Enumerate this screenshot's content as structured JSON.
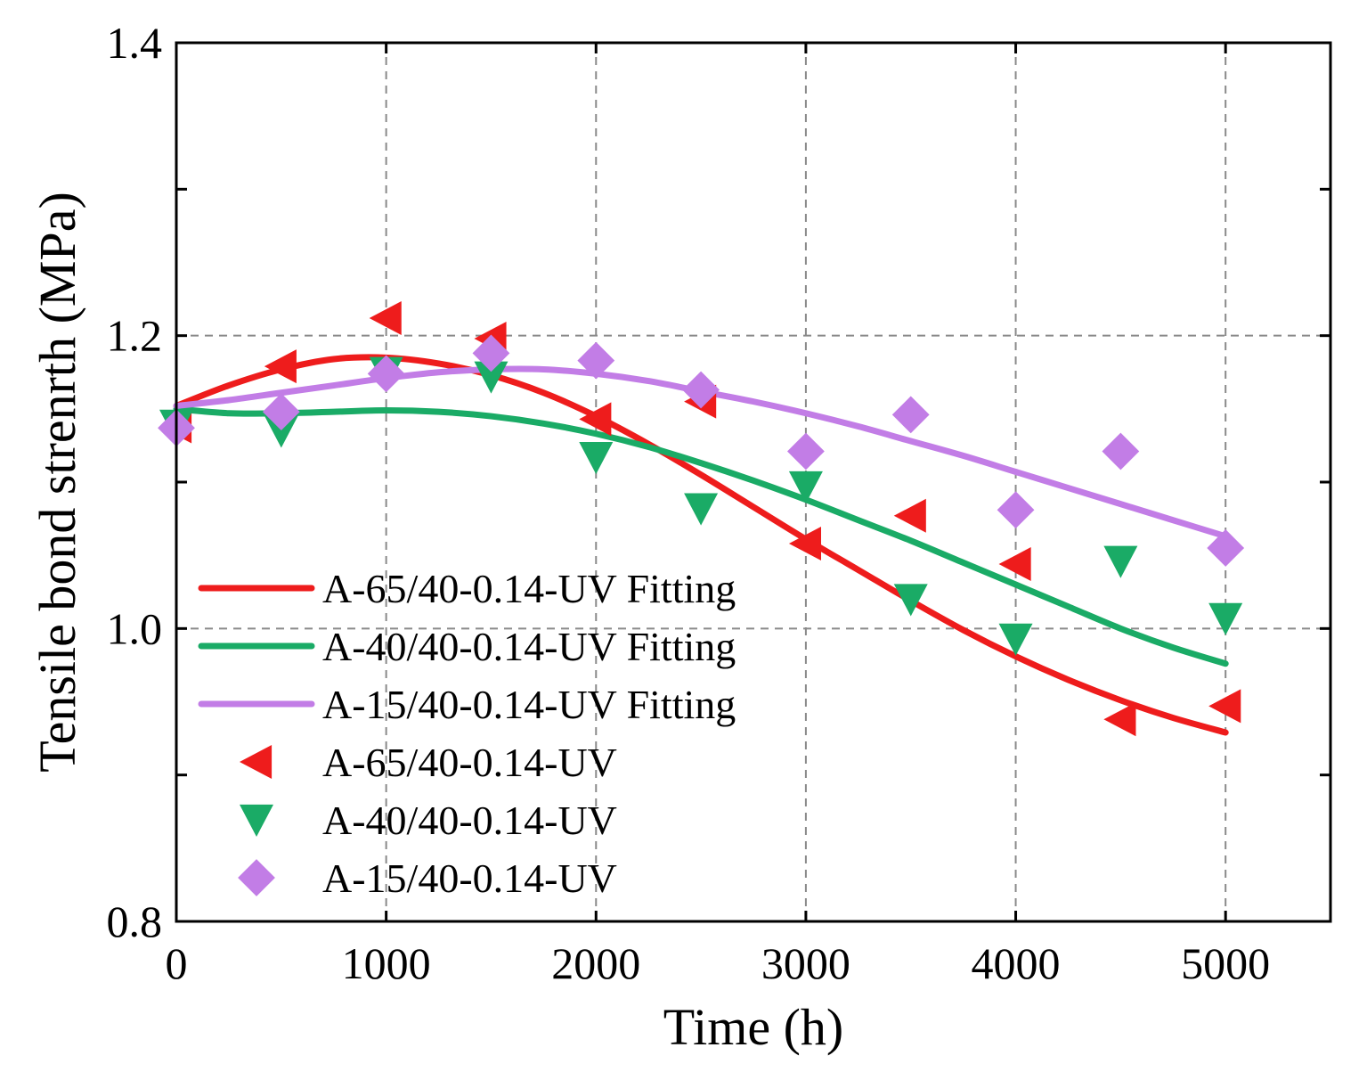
{
  "chart_data": {
    "type": "scatter",
    "title": "",
    "xlabel": "Time (h)",
    "ylabel": "Tensile bond strenrth (MPa)",
    "xlim": [
      0,
      5500
    ],
    "ylim": [
      0.8,
      1.4
    ],
    "x_ticks": [
      0,
      1000,
      2000,
      3000,
      4000,
      5000
    ],
    "x_tick_labels": [
      "0",
      "1000",
      "2000",
      "3000",
      "4000",
      "5000"
    ],
    "y_ticks": [
      0.8,
      1.0,
      1.2,
      1.4
    ],
    "y_tick_labels": [
      "0.8",
      "1.0",
      "1.2",
      "1.4"
    ],
    "y_minor_ticks": [
      0.9,
      1.1,
      1.3
    ],
    "grid": true,
    "legend_position": "bottom-left",
    "series": [
      {
        "name": "A-65/40-0.14-UV Fitting",
        "kind": "line",
        "color": "#ee1c1c",
        "x": [
          0,
          250,
          500,
          750,
          1000,
          1250,
          1500,
          1750,
          2000,
          2250,
          2500,
          2750,
          3000,
          3250,
          3500,
          3750,
          4000,
          4250,
          4500,
          4750,
          5000
        ],
        "y": [
          1.152,
          1.166,
          1.177,
          1.184,
          1.185,
          1.181,
          1.173,
          1.161,
          1.145,
          1.126,
          1.105,
          1.083,
          1.061,
          1.04,
          1.019,
          0.999,
          0.981,
          0.965,
          0.951,
          0.939,
          0.929
        ]
      },
      {
        "name": "A-40/40-0.14-UV Fitting",
        "kind": "line",
        "color": "#1aab66",
        "x": [
          0,
          250,
          500,
          750,
          1000,
          1250,
          1500,
          1750,
          2000,
          2250,
          2500,
          2750,
          3000,
          3250,
          3500,
          3750,
          4000,
          4250,
          4500,
          4750,
          5000
        ],
        "y": [
          1.15,
          1.147,
          1.147,
          1.148,
          1.149,
          1.148,
          1.145,
          1.14,
          1.133,
          1.124,
          1.113,
          1.101,
          1.088,
          1.074,
          1.06,
          1.045,
          1.03,
          1.015,
          1.0,
          0.987,
          0.976
        ]
      },
      {
        "name": "A-15/40-0.14-UV Fitting",
        "kind": "line",
        "color": "#c27de6",
        "x": [
          0,
          250,
          500,
          750,
          1000,
          1250,
          1500,
          1750,
          2000,
          2250,
          2500,
          2750,
          3000,
          3250,
          3500,
          3750,
          4000,
          4250,
          4500,
          4750,
          5000
        ],
        "y": [
          1.152,
          1.156,
          1.161,
          1.166,
          1.171,
          1.175,
          1.177,
          1.177,
          1.174,
          1.169,
          1.162,
          1.155,
          1.147,
          1.138,
          1.128,
          1.118,
          1.107,
          1.096,
          1.085,
          1.074,
          1.063
        ]
      },
      {
        "name": "A-65/40-0.14-UV",
        "kind": "marker",
        "marker": "triangle-left",
        "color": "#ee1c1c",
        "x": [
          0,
          500,
          1000,
          1500,
          2000,
          2500,
          3000,
          3500,
          4000,
          4500,
          5000
        ],
        "y": [
          1.138,
          1.179,
          1.212,
          1.198,
          1.143,
          1.155,
          1.058,
          1.077,
          1.044,
          0.938,
          0.947
        ]
      },
      {
        "name": "A-40/40-0.14-UV",
        "kind": "marker",
        "marker": "triangle-down",
        "color": "#1aab66",
        "x": [
          0,
          500,
          1000,
          1500,
          2000,
          2500,
          3000,
          3500,
          4000,
          4500,
          5000
        ],
        "y": [
          1.139,
          1.135,
          1.175,
          1.172,
          1.117,
          1.082,
          1.097,
          1.02,
          0.993,
          1.046,
          1.007
        ]
      },
      {
        "name": "A-15/40-0.14-UV",
        "kind": "marker",
        "marker": "diamond",
        "color": "#c27de6",
        "x": [
          0,
          500,
          1000,
          1500,
          2000,
          2500,
          3000,
          3500,
          4000,
          4500,
          5000
        ],
        "y": [
          1.137,
          1.148,
          1.174,
          1.188,
          1.183,
          1.163,
          1.121,
          1.146,
          1.081,
          1.121,
          1.055
        ]
      }
    ]
  }
}
